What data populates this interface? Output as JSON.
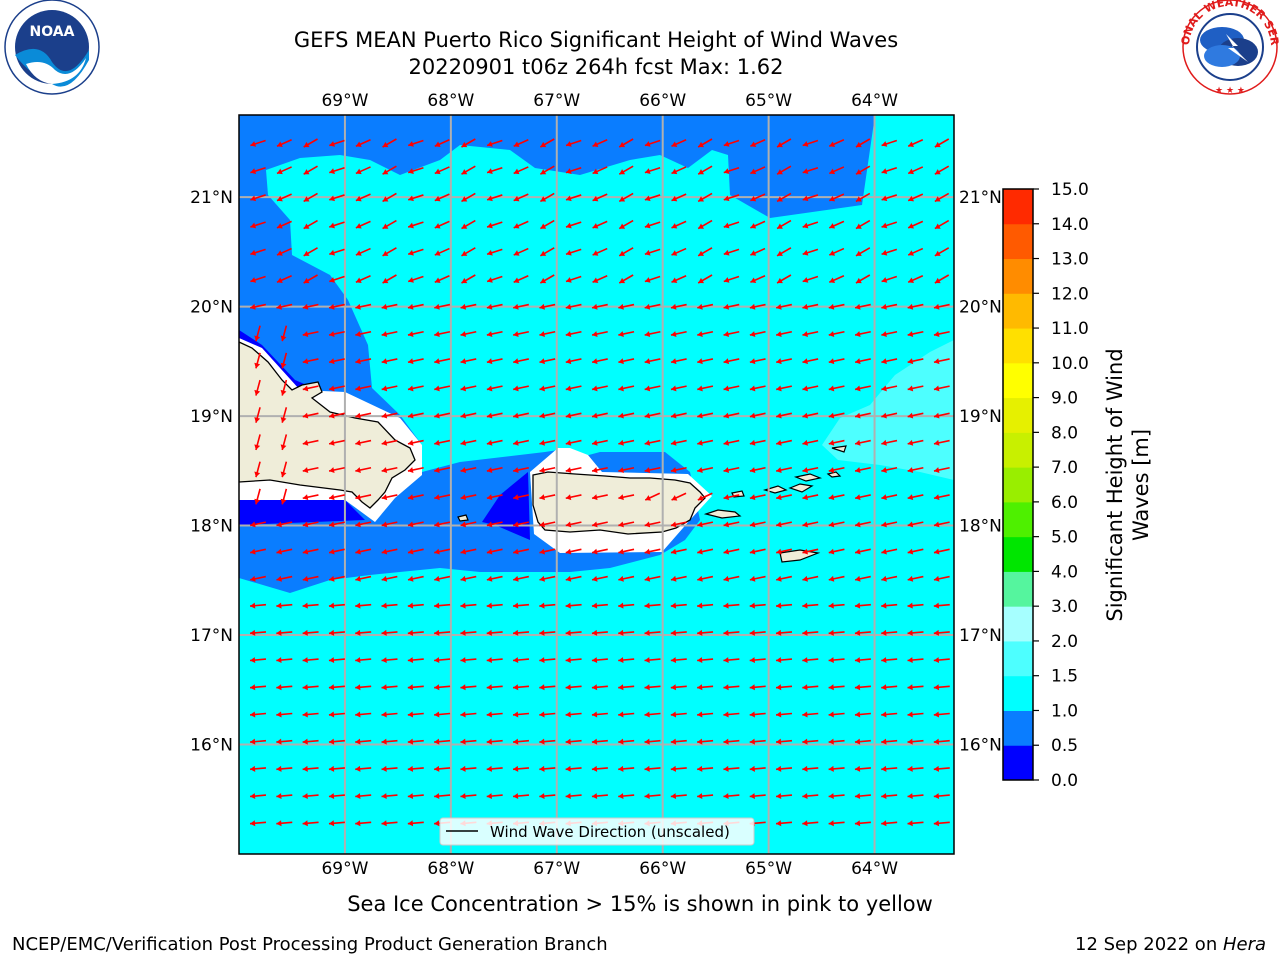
{
  "title": {
    "line1": "GEFS MEAN Puerto Rico Significant Height of Wind Waves",
    "line2": "20220901 t06z 264h fcst   Max: 1.62"
  },
  "logos": {
    "left": {
      "name": "noaa-logo",
      "text": "NOAA",
      "ring_text": "NATIONAL OCEANIC AND ATMOSPHERIC ADMINISTRATION",
      "ring_text_bottom": "U.S. DEPARTMENT OF COMMERCE"
    },
    "right": {
      "name": "nws-logo",
      "ring_text": "NATIONAL WEATHER SERVICE"
    }
  },
  "map": {
    "lon_range": [
      -70.0,
      -63.25
    ],
    "lat_range": [
      15.0,
      21.75
    ],
    "lon_ticks": [
      -69,
      -68,
      -67,
      -66,
      -65,
      -64
    ],
    "lat_ticks": [
      16,
      17,
      18,
      19,
      20,
      21
    ],
    "lon_labels": [
      "69°W",
      "68°W",
      "67°W",
      "66°W",
      "65°W",
      "64°W"
    ],
    "lat_labels": [
      "16°N",
      "17°N",
      "18°N",
      "19°N",
      "20°N",
      "21°N"
    ],
    "legend_label": "Wind Wave Direction (unscaled)",
    "arrow_color": "#ff0000",
    "land_color": "#efedd9"
  },
  "colorbar": {
    "label": "Significant Height of Wind Waves [m]",
    "label_line1": "Significant Height of Wind",
    "label_line2": "Waves [m]",
    "ticks": [
      "0.0",
      "0.5",
      "1.0",
      "1.5",
      "2.0",
      "3.0",
      "4.0",
      "5.0",
      "6.0",
      "7.0",
      "8.0",
      "9.0",
      "10.0",
      "11.0",
      "12.0",
      "13.0",
      "14.0",
      "15.0"
    ],
    "colors": [
      "#0000ff",
      "#0a7dff",
      "#00ffff",
      "#4dffff",
      "#a6ffff",
      "#55f59e",
      "#00e600",
      "#4ef000",
      "#99ee00",
      "#c8f000",
      "#e6f000",
      "#ffff00",
      "#ffe000",
      "#ffba00",
      "#ff8c00",
      "#ff5a00",
      "#ff2a00"
    ]
  },
  "note": "Sea Ice Concentration > 15% is shown in pink to yellow",
  "footer": {
    "left": "NCEP/EMC/Verification Post Processing Product Generation Branch",
    "right_date": "12 Sep 2022 on ",
    "right_machine": "Hera"
  },
  "chart_data": {
    "type": "heatmap",
    "variable": "Significant Height of Wind Waves",
    "units": "m",
    "max": 1.62,
    "levels": [
      0.0,
      0.5,
      1.0,
      1.5,
      2.0,
      3.0,
      4.0,
      5.0,
      6.0,
      7.0,
      8.0,
      9.0,
      10.0,
      11.0,
      12.0,
      13.0,
      14.0,
      15.0
    ],
    "vector_field": "Wind Wave Direction (unscaled)"
  }
}
